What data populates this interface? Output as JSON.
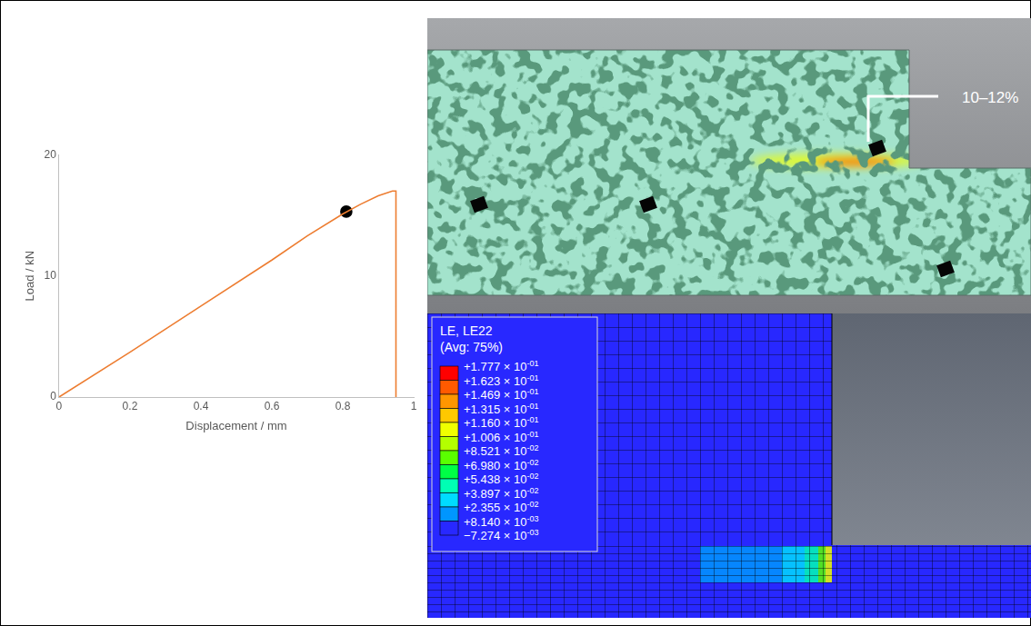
{
  "chart_data": {
    "type": "line",
    "x_label": "Displacement / mm",
    "y_label": "Load / kN",
    "series": [
      {
        "x": [
          0,
          0.2,
          0.4,
          0.6,
          0.7,
          0.8,
          0.85,
          0.9,
          0.94,
          0.95,
          0.95
        ],
        "values": [
          0,
          3.7,
          7.5,
          11.3,
          13.3,
          15.1,
          15.9,
          16.6,
          17.0,
          17.0,
          0
        ],
        "color": "#ED7D31",
        "marker": "none",
        "line_style": "solid"
      },
      {
        "x": [
          0.81
        ],
        "values": [
          15.3
        ],
        "color": "#000000",
        "marker": "circle",
        "type": "scatter"
      }
    ],
    "xlim": [
      0,
      1
    ],
    "xticks": [
      0,
      0.2,
      0.4,
      0.6,
      0.8,
      1
    ],
    "ylim": [
      0,
      20
    ],
    "yticks": [
      0,
      10,
      20
    ],
    "grid": false
  },
  "dic_image": {
    "annotation": "10–12%"
  },
  "fe_contour": {
    "legend_title": "LE, LE22",
    "legend_subtitle": "(Avg: 75%)",
    "levels": [
      {
        "value": 0.1777,
        "label": "+1.777 × 10",
        "exponent": "-01"
      },
      {
        "value": 0.1623,
        "label": "+1.623 × 10",
        "exponent": "-01"
      },
      {
        "value": 0.1469,
        "label": "+1.469 × 10",
        "exponent": "-01"
      },
      {
        "value": 0.1315,
        "label": "+1.315 × 10",
        "exponent": "-01"
      },
      {
        "value": 0.116,
        "label": "+1.160 × 10",
        "exponent": "-01"
      },
      {
        "value": 0.1006,
        "label": "+1.006 × 10",
        "exponent": "-01"
      },
      {
        "value": 0.08521,
        "label": "+8.521 × 10",
        "exponent": "-02"
      },
      {
        "value": 0.0698,
        "label": "+6.980 × 10",
        "exponent": "-02"
      },
      {
        "value": 0.05438,
        "label": "+5.438 × 10",
        "exponent": "-02"
      },
      {
        "value": 0.03897,
        "label": "+3.897 × 10",
        "exponent": "-02"
      },
      {
        "value": 0.02355,
        "label": "+2.355 × 10",
        "exponent": "-02"
      },
      {
        "value": 0.00814,
        "label": "+8.140 × 10",
        "exponent": "-03"
      },
      {
        "value": -0.007274,
        "label": "−7.274 × 10",
        "exponent": "-03"
      }
    ],
    "colors": [
      "#ff0000",
      "#ff5a00",
      "#ff9600",
      "#ffc800",
      "#f0ff00",
      "#b4ff00",
      "#5aff00",
      "#00ff46",
      "#00ffb4",
      "#00dcff",
      "#0096ff",
      "#2828ff"
    ]
  }
}
